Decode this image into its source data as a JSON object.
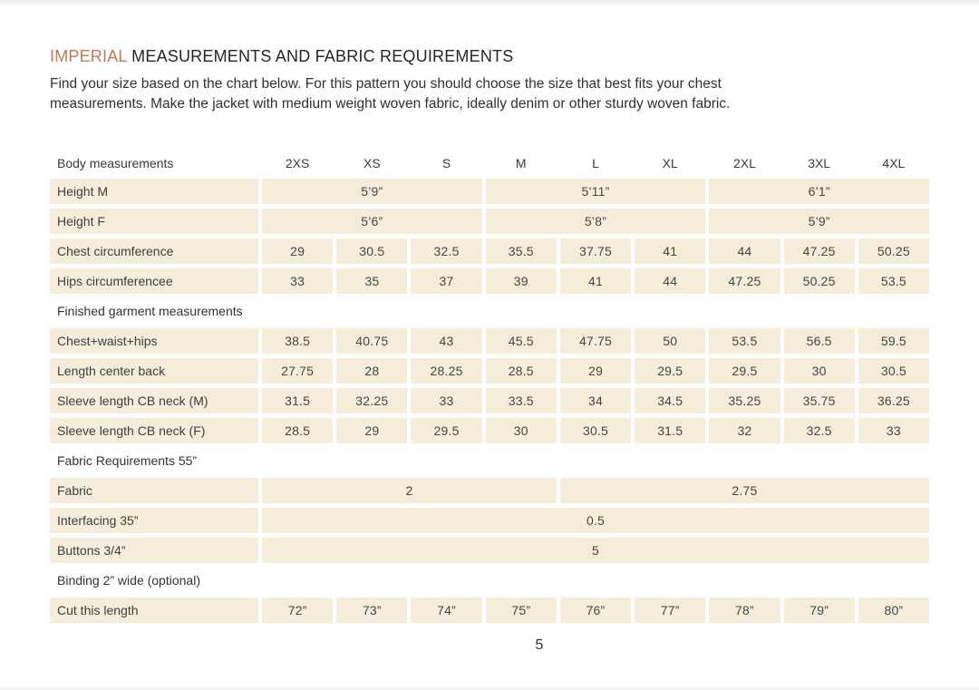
{
  "page": {
    "title_accent": "IMPERIAL",
    "title_rest": "MEASUREMENTS AND FABRIC REQUIREMENTS",
    "intro_line1": "Find your size based on the chart below. For this pattern you should choose the size that best fits your chest",
    "intro_line2": "measurements. Make the jacket with medium weight woven fabric, ideally denim or other sturdy woven fabric.",
    "page_number": "5"
  },
  "colors": {
    "accent": "#c8774f",
    "cell_bg": "#f5ecda",
    "title_text": "#262626",
    "body_text": "#303030"
  },
  "table": {
    "header": {
      "label": "Body measurements",
      "sizes": [
        "2XS",
        "XS",
        "S",
        "M",
        "L",
        "XL",
        "2XL",
        "3XL",
        "4XL"
      ]
    },
    "rows": [
      {
        "type": "data",
        "label": "Height M",
        "cells": [
          {
            "text": "5’9”",
            "span": 3
          },
          {
            "text": "5’11”",
            "span": 3
          },
          {
            "text": "6’1”",
            "span": 3
          }
        ]
      },
      {
        "type": "data",
        "label": "Height F",
        "cells": [
          {
            "text": "5’6”",
            "span": 3
          },
          {
            "text": "5’8”",
            "span": 3
          },
          {
            "text": "5’9”",
            "span": 3
          }
        ]
      },
      {
        "type": "data",
        "label": "Chest circumference",
        "cells": [
          {
            "text": "29",
            "span": 1
          },
          {
            "text": "30.5",
            "span": 1
          },
          {
            "text": "32.5",
            "span": 1
          },
          {
            "text": "35.5",
            "span": 1
          },
          {
            "text": "37.75",
            "span": 1
          },
          {
            "text": "41",
            "span": 1
          },
          {
            "text": "44",
            "span": 1
          },
          {
            "text": "47.25",
            "span": 1
          },
          {
            "text": "50.25",
            "span": 1
          }
        ]
      },
      {
        "type": "data",
        "label": "Hips circumferencee",
        "cells": [
          {
            "text": "33",
            "span": 1
          },
          {
            "text": "35",
            "span": 1
          },
          {
            "text": "37",
            "span": 1
          },
          {
            "text": "39",
            "span": 1
          },
          {
            "text": "41",
            "span": 1
          },
          {
            "text": "44",
            "span": 1
          },
          {
            "text": "47.25",
            "span": 1
          },
          {
            "text": "50.25",
            "span": 1
          },
          {
            "text": "53.5",
            "span": 1
          }
        ]
      },
      {
        "type": "section",
        "label": "Finished garment measurements"
      },
      {
        "type": "data",
        "label": "Chest+waist+hips",
        "cells": [
          {
            "text": "38.5",
            "span": 1
          },
          {
            "text": "40.75",
            "span": 1
          },
          {
            "text": "43",
            "span": 1
          },
          {
            "text": "45.5",
            "span": 1
          },
          {
            "text": "47.75",
            "span": 1
          },
          {
            "text": "50",
            "span": 1
          },
          {
            "text": "53.5",
            "span": 1
          },
          {
            "text": "56.5",
            "span": 1
          },
          {
            "text": "59.5",
            "span": 1
          }
        ]
      },
      {
        "type": "data",
        "label": "Length center back",
        "cells": [
          {
            "text": "27.75",
            "span": 1
          },
          {
            "text": "28",
            "span": 1
          },
          {
            "text": "28.25",
            "span": 1
          },
          {
            "text": "28.5",
            "span": 1
          },
          {
            "text": "29",
            "span": 1
          },
          {
            "text": "29.5",
            "span": 1
          },
          {
            "text": "29.5",
            "span": 1
          },
          {
            "text": "30",
            "span": 1
          },
          {
            "text": "30.5",
            "span": 1
          }
        ]
      },
      {
        "type": "data",
        "label": "Sleeve length CB neck (M)",
        "cells": [
          {
            "text": "31.5",
            "span": 1
          },
          {
            "text": "32.25",
            "span": 1
          },
          {
            "text": "33",
            "span": 1
          },
          {
            "text": "33.5",
            "span": 1
          },
          {
            "text": "34",
            "span": 1
          },
          {
            "text": "34.5",
            "span": 1
          },
          {
            "text": "35.25",
            "span": 1
          },
          {
            "text": "35.75",
            "span": 1
          },
          {
            "text": "36.25",
            "span": 1
          }
        ]
      },
      {
        "type": "data",
        "label": "Sleeve length CB neck (F)",
        "cells": [
          {
            "text": "28.5",
            "span": 1
          },
          {
            "text": "29",
            "span": 1
          },
          {
            "text": "29.5",
            "span": 1
          },
          {
            "text": "30",
            "span": 1
          },
          {
            "text": "30.5",
            "span": 1
          },
          {
            "text": "31.5",
            "span": 1
          },
          {
            "text": "32",
            "span": 1
          },
          {
            "text": "32.5",
            "span": 1
          },
          {
            "text": "33",
            "span": 1
          }
        ]
      },
      {
        "type": "section",
        "label": "Fabric Requirements 55”"
      },
      {
        "type": "data",
        "label": "Fabric",
        "cells": [
          {
            "text": "2",
            "span": 4
          },
          {
            "text": "2.75",
            "span": 5
          }
        ]
      },
      {
        "type": "data",
        "label": "Interfacing 35”",
        "cells": [
          {
            "text": "0.5",
            "span": 9
          }
        ]
      },
      {
        "type": "data",
        "label": "Buttons 3/4”",
        "cells": [
          {
            "text": "5",
            "span": 9
          }
        ]
      },
      {
        "type": "section",
        "label": "Binding 2” wide (optional)"
      },
      {
        "type": "data",
        "label": "Cut this length",
        "cells": [
          {
            "text": "72”",
            "span": 1
          },
          {
            "text": "73”",
            "span": 1
          },
          {
            "text": "74”",
            "span": 1
          },
          {
            "text": "75”",
            "span": 1
          },
          {
            "text": "76”",
            "span": 1
          },
          {
            "text": "77”",
            "span": 1
          },
          {
            "text": "78”",
            "span": 1
          },
          {
            "text": "79”",
            "span": 1
          },
          {
            "text": "80”",
            "span": 1
          }
        ]
      }
    ]
  }
}
